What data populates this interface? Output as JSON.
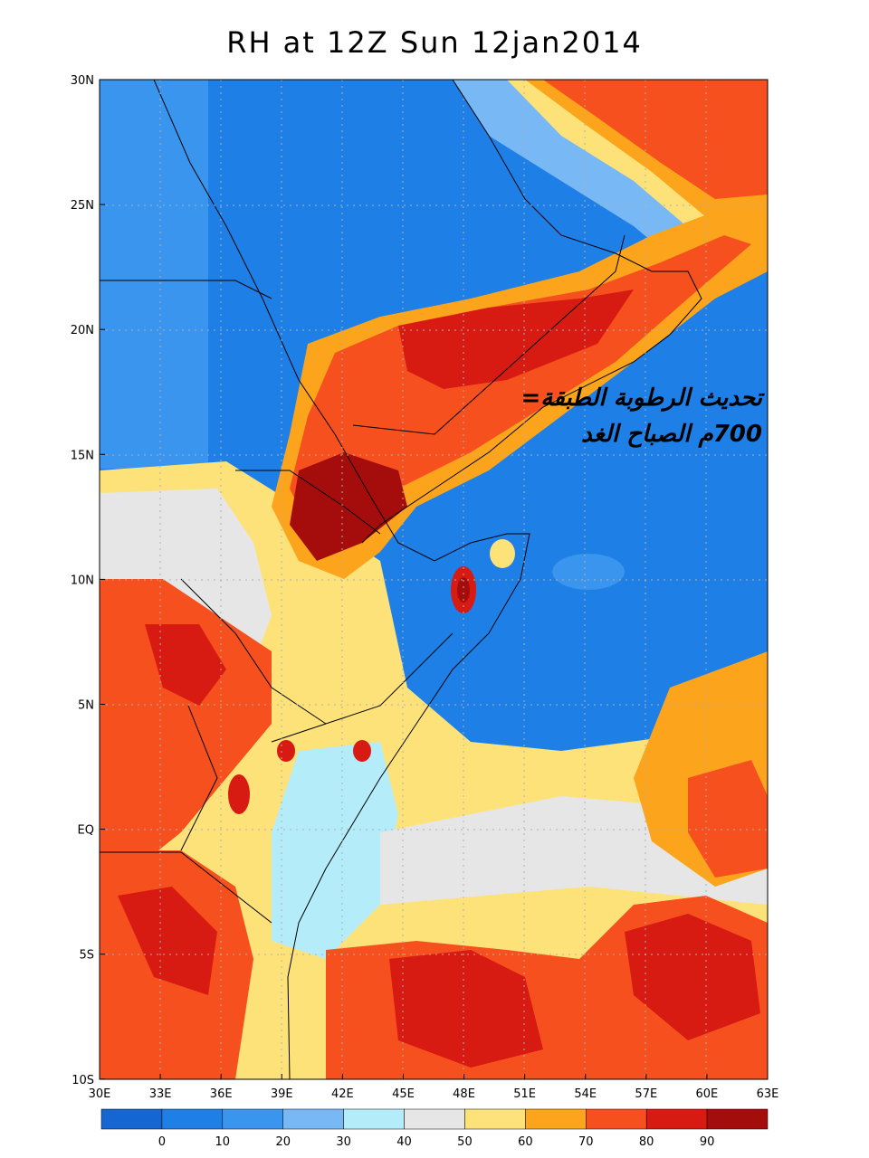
{
  "title": "RH at 12Z Sun 12jan2014",
  "annotation": {
    "line1": "تحديث الرطوبة الطبقة=",
    "line2": "700م الصباح الغد"
  },
  "axes": {
    "lat_labels": [
      "30N",
      "25N",
      "20N",
      "15N",
      "10N",
      "5N",
      "EQ",
      "5S",
      "10S"
    ],
    "lon_labels": [
      "30E",
      "33E",
      "36E",
      "39E",
      "42E",
      "45E",
      "48E",
      "51E",
      "54E",
      "57E",
      "60E",
      "63E"
    ]
  },
  "colorbar": {
    "labels": [
      "0",
      "10",
      "20",
      "30",
      "40",
      "50",
      "60",
      "70",
      "80",
      "90"
    ],
    "colors": [
      "#1565d2",
      "#1e7fe6",
      "#3a95ee",
      "#78b9f5",
      "#b4ecfa",
      "#e6e6e6",
      "#fde27a",
      "#fca41c",
      "#f5501e",
      "#d71a12",
      "#a50d0d"
    ]
  },
  "map_colors": {
    "ocean_blue": "#1e7fe6",
    "land_blue": "#3a95ee",
    "moist_band": "#f5501e",
    "core": "#a50d0d"
  }
}
